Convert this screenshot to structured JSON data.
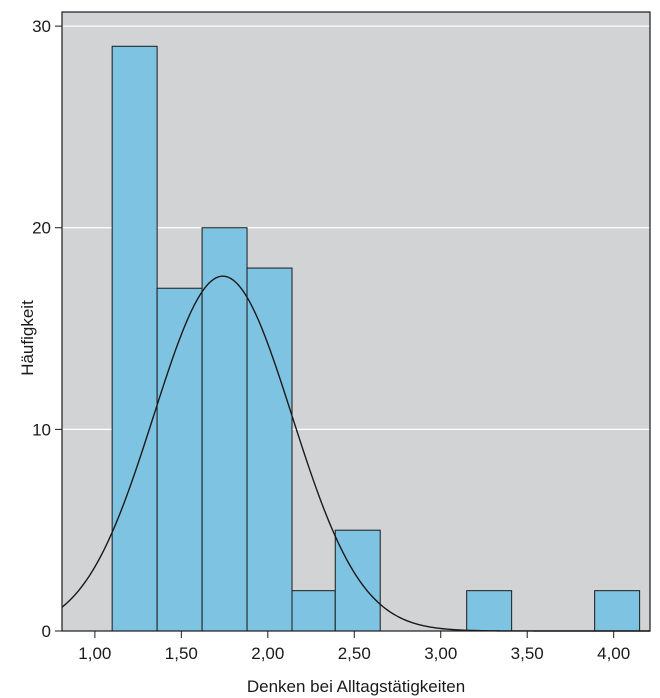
{
  "chart_data": {
    "type": "bar",
    "xlabel": "Denken bei Alltagstätigkeiten",
    "ylabel": "Häufigkeit",
    "xlim": [
      0.81,
      4.21
    ],
    "ylim": [
      0,
      30.7
    ],
    "x_ticks": [
      {
        "value": 1.0,
        "label": "1,00"
      },
      {
        "value": 1.5,
        "label": "1,50"
      },
      {
        "value": 2.0,
        "label": "2,00"
      },
      {
        "value": 2.5,
        "label": "2,50"
      },
      {
        "value": 3.0,
        "label": "3,00"
      },
      {
        "value": 3.5,
        "label": "3,50"
      },
      {
        "value": 4.0,
        "label": "4,00"
      }
    ],
    "y_ticks": [
      {
        "value": 0,
        "label": "0"
      },
      {
        "value": 10,
        "label": "10"
      },
      {
        "value": 20,
        "label": "20"
      },
      {
        "value": 30,
        "label": "30"
      }
    ],
    "grid": "horizontal",
    "bins": [
      {
        "start": 1.1,
        "end": 1.36,
        "value": 29
      },
      {
        "start": 1.36,
        "end": 1.62,
        "value": 17
      },
      {
        "start": 1.62,
        "end": 1.88,
        "value": 20
      },
      {
        "start": 1.88,
        "end": 2.14,
        "value": 18
      },
      {
        "start": 2.14,
        "end": 2.39,
        "value": 2
      },
      {
        "start": 2.39,
        "end": 2.65,
        "value": 5
      },
      {
        "start": 3.15,
        "end": 3.41,
        "value": 2
      },
      {
        "start": 3.89,
        "end": 4.15,
        "value": 2
      }
    ],
    "normal_curve": {
      "mean": 1.74,
      "sd": 0.4,
      "peak": 17.6
    },
    "colors": {
      "plot_background": "#d2d3d5",
      "bar_fill": "#7fc3e2",
      "bar_stroke": "#1a1a1a",
      "grid": "#ffffff",
      "curve": "#1a1a1a"
    }
  }
}
